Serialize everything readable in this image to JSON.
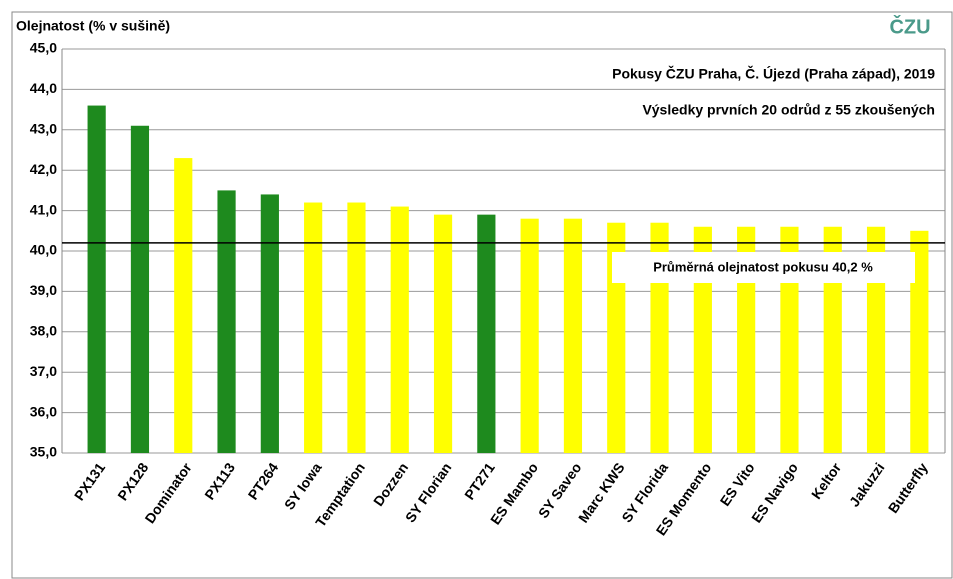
{
  "chart_data": {
    "type": "bar",
    "y_axis_label": "Olejnatost (% v sušině)",
    "subtitles": [
      "Pokusy ČZU Praha, Č. Újezd (Praha západ), 2019",
      "Výsledky prvních 20 odrůd z 55 zkoušených"
    ],
    "logo_text": "ČZU",
    "categories": [
      "PX131",
      "PX128",
      "Dominator",
      "PX113",
      "PT264",
      "SY Iowa",
      "Temptation",
      "Dozzen",
      "SY Florian",
      "PT271",
      "ES Mambo",
      "SY Saveo",
      "Marc KWS",
      "SY Florida",
      "ES Momento",
      "ES Vito",
      "ES Navigo",
      "Keltor",
      "Jakuzzi",
      "Butterfly"
    ],
    "values": [
      43.6,
      43.1,
      42.3,
      41.5,
      41.4,
      41.2,
      41.2,
      41.1,
      40.9,
      40.9,
      40.8,
      40.8,
      40.7,
      40.7,
      40.6,
      40.6,
      40.6,
      40.6,
      40.6,
      40.5
    ],
    "colors": [
      "#1e8a1e",
      "#1e8a1e",
      "#ffff00",
      "#1e8a1e",
      "#1e8a1e",
      "#ffff00",
      "#ffff00",
      "#ffff00",
      "#ffff00",
      "#1e8a1e",
      "#ffff00",
      "#ffff00",
      "#ffff00",
      "#ffff00",
      "#ffff00",
      "#ffff00",
      "#ffff00",
      "#ffff00",
      "#ffff00",
      "#ffff00"
    ],
    "reference_line": {
      "value": 40.2,
      "label": "Průměrná olejnatost pokusu 40,2 %"
    },
    "ylim": [
      35,
      45
    ],
    "yticks": [
      {
        "value": 35,
        "label": "35,0"
      },
      {
        "value": 36,
        "label": "36,0"
      },
      {
        "value": 37,
        "label": "37,0"
      },
      {
        "value": 38,
        "label": "38,0"
      },
      {
        "value": 39,
        "label": "39,0"
      },
      {
        "value": 40,
        "label": "40,0"
      },
      {
        "value": 41,
        "label": "41,0"
      },
      {
        "value": 42,
        "label": "42,0"
      },
      {
        "value": 43,
        "label": "43,0"
      },
      {
        "value": 44,
        "label": "44,0"
      },
      {
        "value": 45,
        "label": "45,0"
      }
    ],
    "grid": true
  }
}
